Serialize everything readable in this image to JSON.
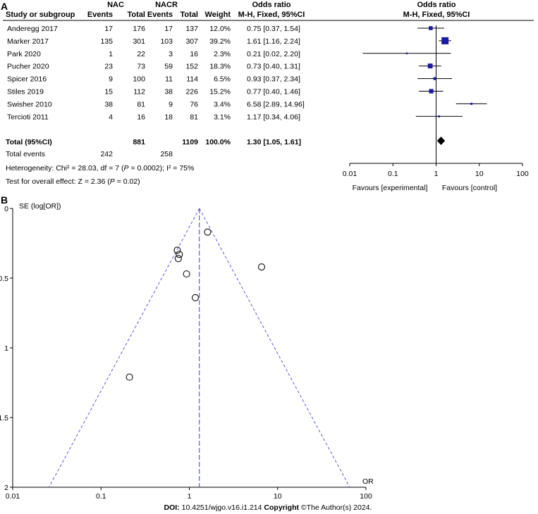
{
  "chart_data": [
    {
      "panel": "A",
      "type": "table",
      "subtype": "forest-plot",
      "group_headers": {
        "experimental": "NAC",
        "control": "NACR",
        "effect": "Odds ratio",
        "plot": "Odds ratio"
      },
      "columns": {
        "study": "Study or subgroup",
        "events": "Events",
        "total": "Total",
        "weight": "Weight",
        "ci": "M-H, Fixed, 95%CI",
        "plot_ci": "M-H, Fixed, 95%CI"
      },
      "rows": [
        {
          "study": "Anderegg 2017",
          "e_events": "17",
          "e_total": "176",
          "c_events": "17",
          "c_total": "137",
          "weight": "12.0%",
          "ci_text": "0.75 [0.37, 1.54]",
          "or": 0.75,
          "lo": 0.37,
          "hi": 1.54,
          "w": 12.0
        },
        {
          "study": "Marker 2017",
          "e_events": "135",
          "e_total": "301",
          "c_events": "103",
          "c_total": "307",
          "weight": "39.2%",
          "ci_text": "1.61 [1.16, 2.24]",
          "or": 1.61,
          "lo": 1.16,
          "hi": 2.24,
          "w": 39.2
        },
        {
          "study": "Park 2020",
          "e_events": "1",
          "e_total": "22",
          "c_events": "3",
          "c_total": "16",
          "weight": "2.3%",
          "ci_text": "0.21 [0.02, 2.20]",
          "or": 0.21,
          "lo": 0.02,
          "hi": 2.2,
          "w": 2.3
        },
        {
          "study": "Pucher 2020",
          "e_events": "23",
          "e_total": "73",
          "c_events": "59",
          "c_total": "152",
          "weight": "18.3%",
          "ci_text": "0.73 [0.40, 1.31]",
          "or": 0.73,
          "lo": 0.4,
          "hi": 1.31,
          "w": 18.3
        },
        {
          "study": "Spicer 2016",
          "e_events": "9",
          "e_total": "100",
          "c_events": "11",
          "c_total": "114",
          "weight": "6.5%",
          "ci_text": "0.93 [0.37, 2.34]",
          "or": 0.93,
          "lo": 0.37,
          "hi": 2.34,
          "w": 6.5
        },
        {
          "study": "Stiles 2019",
          "e_events": "15",
          "e_total": "112",
          "c_events": "38",
          "c_total": "226",
          "weight": "15.2%",
          "ci_text": "0.77 [0.40, 1.46]",
          "or": 0.77,
          "lo": 0.4,
          "hi": 1.46,
          "w": 15.2
        },
        {
          "study": "Swisher 2010",
          "e_events": "38",
          "e_total": "81",
          "c_events": "9",
          "c_total": "76",
          "weight": "3.4%",
          "ci_text": "6.58 [2.89, 14.96]",
          "or": 6.58,
          "lo": 2.89,
          "hi": 14.96,
          "w": 3.4
        },
        {
          "study": "Tercioti 2011",
          "e_events": "4",
          "e_total": "16",
          "c_events": "18",
          "c_total": "81",
          "weight": "3.1%",
          "ci_text": "1.17 [0.34, 4.06]",
          "or": 1.17,
          "lo": 0.34,
          "hi": 4.06,
          "w": 3.1
        }
      ],
      "total": {
        "label": "Total (95%CI)",
        "e_total": "881",
        "c_total": "1109",
        "weight": "100.0%",
        "ci_text": "1.30 [1.05, 1.61]",
        "or": 1.3,
        "lo": 1.05,
        "hi": 1.61
      },
      "total_events": {
        "label": "Total events",
        "e": "242",
        "c": "258"
      },
      "heterogeneity": {
        "pre": "Heterogeneity: Chi² = 28.03, df = 7 (",
        "p": "P",
        "mid": " = 0.0002); I² = 75%"
      },
      "overall_effect": {
        "pre": "Test for overall effect: Z = 2.36 (",
        "p": "P",
        "mid": " = 0.02)"
      },
      "axis": {
        "scale": "log",
        "ticks": [
          0.01,
          0.1,
          1,
          10,
          100
        ],
        "tick_labels": [
          "0.01",
          "0.1",
          "1",
          "10",
          "100"
        ]
      },
      "favours_left": "Favours [experimental]",
      "favours_right": "Favours [control]"
    },
    {
      "panel": "B",
      "type": "scatter",
      "subtype": "funnel-plot",
      "ylabel": "SE (log[OR])",
      "xlabel": "OR",
      "xscale": "log",
      "xlim": [
        0.01,
        100
      ],
      "ylim": [
        0,
        2
      ],
      "x_ticks": [
        "0.01",
        "0.1",
        "1",
        "10",
        "100"
      ],
      "y_ticks": [
        "0",
        "0.5",
        "1",
        "1.5",
        "2"
      ],
      "pooled_or": 1.3,
      "points": [
        {
          "or": 0.75,
          "se": 0.36
        },
        {
          "or": 1.61,
          "se": 0.17
        },
        {
          "or": 0.21,
          "se": 1.21
        },
        {
          "or": 0.73,
          "se": 0.3
        },
        {
          "or": 0.93,
          "se": 0.47
        },
        {
          "or": 0.77,
          "se": 0.33
        },
        {
          "or": 6.58,
          "se": 0.42
        },
        {
          "or": 1.17,
          "se": 0.64
        }
      ]
    }
  ],
  "panel_labels": {
    "a": "A",
    "b": "B"
  },
  "footer": {
    "doi_label": "DOI:",
    "doi": " 10.4251/wjgo.v16.i1.214 ",
    "copyright_label": "Copyright",
    "copyright": " ©The Author(s) 2024."
  },
  "colors": {
    "marker": "#1a1aa6",
    "ref_line": "#3b3bd8",
    "funnel": "#5b5bd8",
    "axis": "#000000"
  }
}
